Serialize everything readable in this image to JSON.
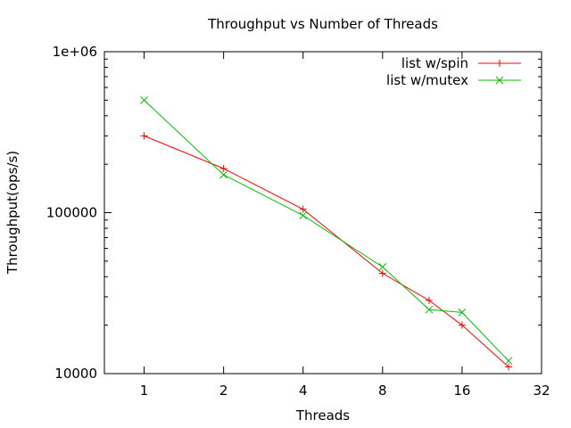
{
  "chart_data": {
    "type": "line",
    "title": "Throughput vs Number of Threads",
    "xlabel": "Threads",
    "ylabel": "Throughput(ops/s)",
    "x_scale": "log2",
    "y_scale": "log10",
    "xlim": [
      0.7071,
      32
    ],
    "ylim": [
      10000,
      1000000
    ],
    "x_ticks": [
      1,
      2,
      4,
      8,
      16,
      32
    ],
    "x_tick_labels": [
      "1",
      "2",
      "4",
      "8",
      "16",
      "32"
    ],
    "y_ticks": [
      10000,
      100000,
      1000000
    ],
    "y_tick_labels": [
      "10000",
      "100000",
      "1e+06"
    ],
    "grid": false,
    "legend_position": "top-right",
    "series": [
      {
        "name": "list w/spin",
        "color": "#ff0000",
        "marker": "plus",
        "x": [
          1,
          2,
          4,
          8,
          12,
          16,
          24
        ],
        "y": [
          300000,
          188000,
          105000,
          42000,
          28500,
          20000,
          11000
        ]
      },
      {
        "name": "list w/mutex",
        "color": "#00c000",
        "marker": "cross",
        "x": [
          1,
          2,
          4,
          8,
          12,
          16,
          24
        ],
        "y": [
          500000,
          172000,
          96000,
          46000,
          25000,
          24000,
          12000
        ]
      }
    ]
  }
}
